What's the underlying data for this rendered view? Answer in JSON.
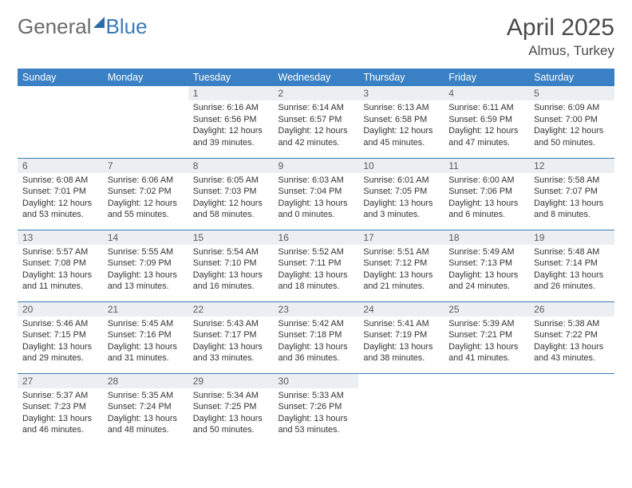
{
  "logo": {
    "text_left": "General",
    "text_right": "Blue"
  },
  "title": "April 2025",
  "subtitle": "Almus, Turkey",
  "header_bg": "#3a80c4",
  "header_fg": "#ffffff",
  "daynum_bg": "#eceff1",
  "border_color": "#3a7ab8",
  "day_headers": [
    "Sunday",
    "Monday",
    "Tuesday",
    "Wednesday",
    "Thursday",
    "Friday",
    "Saturday"
  ],
  "weeks": [
    [
      null,
      null,
      {
        "n": "1",
        "sr": "Sunrise: 6:16 AM",
        "ss": "Sunset: 6:56 PM",
        "d1": "Daylight: 12 hours",
        "d2": "and 39 minutes."
      },
      {
        "n": "2",
        "sr": "Sunrise: 6:14 AM",
        "ss": "Sunset: 6:57 PM",
        "d1": "Daylight: 12 hours",
        "d2": "and 42 minutes."
      },
      {
        "n": "3",
        "sr": "Sunrise: 6:13 AM",
        "ss": "Sunset: 6:58 PM",
        "d1": "Daylight: 12 hours",
        "d2": "and 45 minutes."
      },
      {
        "n": "4",
        "sr": "Sunrise: 6:11 AM",
        "ss": "Sunset: 6:59 PM",
        "d1": "Daylight: 12 hours",
        "d2": "and 47 minutes."
      },
      {
        "n": "5",
        "sr": "Sunrise: 6:09 AM",
        "ss": "Sunset: 7:00 PM",
        "d1": "Daylight: 12 hours",
        "d2": "and 50 minutes."
      }
    ],
    [
      {
        "n": "6",
        "sr": "Sunrise: 6:08 AM",
        "ss": "Sunset: 7:01 PM",
        "d1": "Daylight: 12 hours",
        "d2": "and 53 minutes."
      },
      {
        "n": "7",
        "sr": "Sunrise: 6:06 AM",
        "ss": "Sunset: 7:02 PM",
        "d1": "Daylight: 12 hours",
        "d2": "and 55 minutes."
      },
      {
        "n": "8",
        "sr": "Sunrise: 6:05 AM",
        "ss": "Sunset: 7:03 PM",
        "d1": "Daylight: 12 hours",
        "d2": "and 58 minutes."
      },
      {
        "n": "9",
        "sr": "Sunrise: 6:03 AM",
        "ss": "Sunset: 7:04 PM",
        "d1": "Daylight: 13 hours",
        "d2": "and 0 minutes."
      },
      {
        "n": "10",
        "sr": "Sunrise: 6:01 AM",
        "ss": "Sunset: 7:05 PM",
        "d1": "Daylight: 13 hours",
        "d2": "and 3 minutes."
      },
      {
        "n": "11",
        "sr": "Sunrise: 6:00 AM",
        "ss": "Sunset: 7:06 PM",
        "d1": "Daylight: 13 hours",
        "d2": "and 6 minutes."
      },
      {
        "n": "12",
        "sr": "Sunrise: 5:58 AM",
        "ss": "Sunset: 7:07 PM",
        "d1": "Daylight: 13 hours",
        "d2": "and 8 minutes."
      }
    ],
    [
      {
        "n": "13",
        "sr": "Sunrise: 5:57 AM",
        "ss": "Sunset: 7:08 PM",
        "d1": "Daylight: 13 hours",
        "d2": "and 11 minutes."
      },
      {
        "n": "14",
        "sr": "Sunrise: 5:55 AM",
        "ss": "Sunset: 7:09 PM",
        "d1": "Daylight: 13 hours",
        "d2": "and 13 minutes."
      },
      {
        "n": "15",
        "sr": "Sunrise: 5:54 AM",
        "ss": "Sunset: 7:10 PM",
        "d1": "Daylight: 13 hours",
        "d2": "and 16 minutes."
      },
      {
        "n": "16",
        "sr": "Sunrise: 5:52 AM",
        "ss": "Sunset: 7:11 PM",
        "d1": "Daylight: 13 hours",
        "d2": "and 18 minutes."
      },
      {
        "n": "17",
        "sr": "Sunrise: 5:51 AM",
        "ss": "Sunset: 7:12 PM",
        "d1": "Daylight: 13 hours",
        "d2": "and 21 minutes."
      },
      {
        "n": "18",
        "sr": "Sunrise: 5:49 AM",
        "ss": "Sunset: 7:13 PM",
        "d1": "Daylight: 13 hours",
        "d2": "and 24 minutes."
      },
      {
        "n": "19",
        "sr": "Sunrise: 5:48 AM",
        "ss": "Sunset: 7:14 PM",
        "d1": "Daylight: 13 hours",
        "d2": "and 26 minutes."
      }
    ],
    [
      {
        "n": "20",
        "sr": "Sunrise: 5:46 AM",
        "ss": "Sunset: 7:15 PM",
        "d1": "Daylight: 13 hours",
        "d2": "and 29 minutes."
      },
      {
        "n": "21",
        "sr": "Sunrise: 5:45 AM",
        "ss": "Sunset: 7:16 PM",
        "d1": "Daylight: 13 hours",
        "d2": "and 31 minutes."
      },
      {
        "n": "22",
        "sr": "Sunrise: 5:43 AM",
        "ss": "Sunset: 7:17 PM",
        "d1": "Daylight: 13 hours",
        "d2": "and 33 minutes."
      },
      {
        "n": "23",
        "sr": "Sunrise: 5:42 AM",
        "ss": "Sunset: 7:18 PM",
        "d1": "Daylight: 13 hours",
        "d2": "and 36 minutes."
      },
      {
        "n": "24",
        "sr": "Sunrise: 5:41 AM",
        "ss": "Sunset: 7:19 PM",
        "d1": "Daylight: 13 hours",
        "d2": "and 38 minutes."
      },
      {
        "n": "25",
        "sr": "Sunrise: 5:39 AM",
        "ss": "Sunset: 7:21 PM",
        "d1": "Daylight: 13 hours",
        "d2": "and 41 minutes."
      },
      {
        "n": "26",
        "sr": "Sunrise: 5:38 AM",
        "ss": "Sunset: 7:22 PM",
        "d1": "Daylight: 13 hours",
        "d2": "and 43 minutes."
      }
    ],
    [
      {
        "n": "27",
        "sr": "Sunrise: 5:37 AM",
        "ss": "Sunset: 7:23 PM",
        "d1": "Daylight: 13 hours",
        "d2": "and 46 minutes."
      },
      {
        "n": "28",
        "sr": "Sunrise: 5:35 AM",
        "ss": "Sunset: 7:24 PM",
        "d1": "Daylight: 13 hours",
        "d2": "and 48 minutes."
      },
      {
        "n": "29",
        "sr": "Sunrise: 5:34 AM",
        "ss": "Sunset: 7:25 PM",
        "d1": "Daylight: 13 hours",
        "d2": "and 50 minutes."
      },
      {
        "n": "30",
        "sr": "Sunrise: 5:33 AM",
        "ss": "Sunset: 7:26 PM",
        "d1": "Daylight: 13 hours",
        "d2": "and 53 minutes."
      },
      null,
      null,
      null
    ]
  ]
}
